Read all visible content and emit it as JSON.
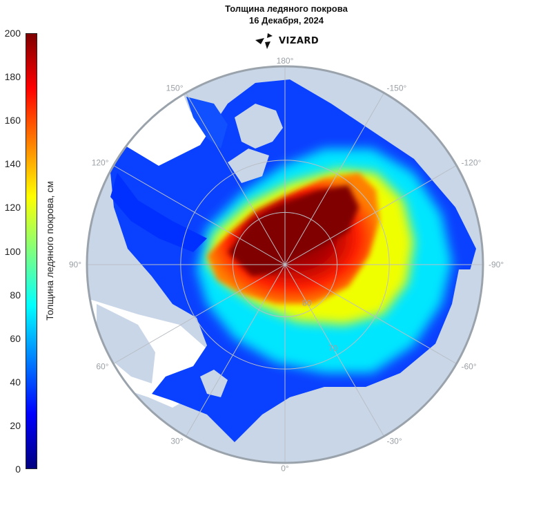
{
  "title": {
    "line1": "Толщина ледяного покрова",
    "line2": "16 Декабря, 2024"
  },
  "logo": {
    "text": "VIZARD",
    "icon": "vizard-triangles-icon"
  },
  "colorbar": {
    "label": "Толщина ледяного покрова, см",
    "min": 0,
    "max": 200,
    "ticks": [
      "0",
      "20",
      "40",
      "60",
      "80",
      "100",
      "120",
      "140",
      "160",
      "180",
      "200"
    ],
    "colormap": "jet"
  },
  "map": {
    "projection": "north polar stereographic",
    "longitude_labels": [
      {
        "text": "-90°",
        "lon": -90
      },
      {
        "text": "-60°",
        "lon": -60
      },
      {
        "text": "-120°",
        "lon": -120
      },
      {
        "text": "-30°",
        "lon": -30
      },
      {
        "text": "-150°",
        "lon": -150
      },
      {
        "text": "0°",
        "lon": 0
      },
      {
        "text": "180°",
        "lon": 180
      },
      {
        "text": "30°",
        "lon": 30
      },
      {
        "text": "150°",
        "lon": 150
      },
      {
        "text": "60°",
        "lon": 60
      },
      {
        "text": "120°",
        "lon": 120
      },
      {
        "text": "90°",
        "lon": 90
      }
    ],
    "latitude_labels": [
      {
        "text": "70",
        "lat": 70
      },
      {
        "text": "80",
        "lat": 80
      }
    ],
    "colors": {
      "land": "#c9d6e8",
      "frame": "#9aa3ab",
      "grid": "#b9bec4",
      "open_water": "#ffffff"
    }
  }
}
